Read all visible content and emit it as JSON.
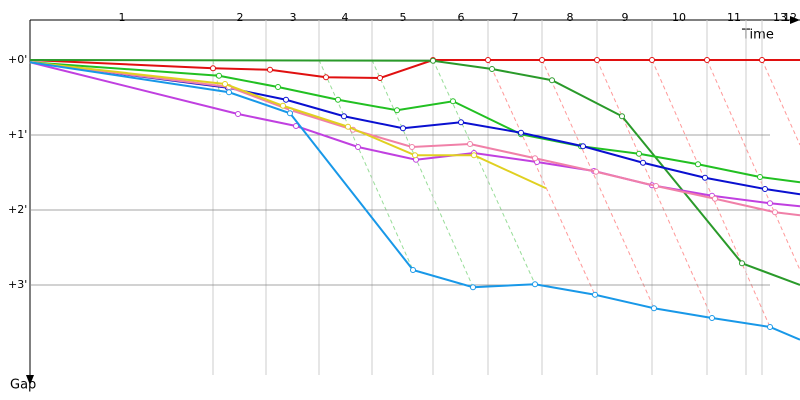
{
  "chart_data": {
    "type": "line",
    "x_label": "Time",
    "y_label": "Gap",
    "xlim": [
      0,
      770
    ],
    "ylim": [
      -0.5,
      4.5
    ],
    "xticks": [
      {
        "value": 92,
        "label": "1"
      },
      {
        "value": 210,
        "label": "2"
      },
      {
        "value": 263,
        "label": "3"
      },
      {
        "value": 315,
        "label": "4"
      },
      {
        "value": 373,
        "label": "5"
      },
      {
        "value": 431,
        "label": "6"
      },
      {
        "value": 485,
        "label": "7"
      },
      {
        "value": 540,
        "label": "8"
      },
      {
        "value": 595,
        "label": "9"
      },
      {
        "value": 649,
        "label": "10"
      },
      {
        "value": 704,
        "label": "11"
      },
      {
        "value": 750,
        "label": "13"
      },
      {
        "value": 760,
        "label": "12"
      }
    ],
    "lap_boundaries": [
      183,
      236,
      289,
      342,
      403,
      458,
      512,
      567,
      622,
      677,
      716,
      732
    ],
    "yticks": [
      {
        "value": 0,
        "label": "+0'"
      },
      {
        "value": 1,
        "label": "+1'"
      },
      {
        "value": 2,
        "label": "+2'"
      },
      {
        "value": 3,
        "label": "+3'"
      }
    ],
    "grid": true,
    "series": [
      {
        "color": "#e01010",
        "x": [
          0,
          183,
          240,
          296,
          350,
          403,
          458,
          512,
          567,
          622,
          677,
          732,
          770
        ],
        "values": [
          0,
          0.11,
          0.13,
          0.23,
          0.24,
          0,
          0,
          0,
          0,
          0,
          0,
          0,
          0
        ]
      },
      {
        "color": "#2a9a2a",
        "x": [
          0,
          403,
          462,
          522,
          592,
          712,
          770
        ],
        "values": [
          0,
          0.01,
          0.12,
          0.27,
          0.75,
          2.71,
          3.0
        ]
      },
      {
        "color": "#22c022",
        "x": [
          0,
          189,
          248,
          308,
          367,
          423,
          491,
          551,
          609,
          668,
          730,
          770
        ],
        "values": [
          0.03,
          0.21,
          0.36,
          0.53,
          0.67,
          0.55,
          0.99,
          1.15,
          1.25,
          1.39,
          1.56,
          1.63
        ]
      },
      {
        "color": "#0a10d0",
        "x": [
          0,
          198,
          256,
          314,
          373,
          431,
          491,
          553,
          613,
          675,
          735,
          770
        ],
        "values": [
          0.03,
          0.37,
          0.53,
          0.75,
          0.91,
          0.83,
          0.97,
          1.15,
          1.37,
          1.57,
          1.72,
          1.79
        ]
      },
      {
        "color": "#c040e0",
        "x": [
          0,
          208,
          266,
          328,
          386,
          444,
          507,
          564,
          622,
          682,
          740,
          770
        ],
        "values": [
          0.03,
          0.72,
          0.88,
          1.16,
          1.33,
          1.24,
          1.36,
          1.48,
          1.67,
          1.81,
          1.91,
          1.95
        ]
      },
      {
        "color": "#f080a8",
        "x": [
          0,
          199,
          261,
          323,
          382,
          440,
          505,
          566,
          626,
          685,
          745,
          770
        ],
        "values": [
          0.03,
          0.36,
          0.67,
          0.93,
          1.16,
          1.12,
          1.31,
          1.49,
          1.68,
          1.85,
          2.03,
          2.07
        ]
      },
      {
        "color": "#e0d020",
        "x": [
          0,
          195,
          253,
          318,
          385,
          444,
          516
        ],
        "values": [
          0.03,
          0.32,
          0.61,
          0.89,
          1.27,
          1.27,
          1.71
        ]
      },
      {
        "color": "#1898e8",
        "x": [
          0,
          199,
          260,
          383,
          443,
          505,
          565,
          624,
          682,
          740,
          770
        ],
        "values": [
          0.03,
          0.43,
          0.71,
          2.8,
          3.03,
          2.99,
          3.13,
          3.31,
          3.44,
          3.56,
          3.73
        ]
      }
    ]
  }
}
